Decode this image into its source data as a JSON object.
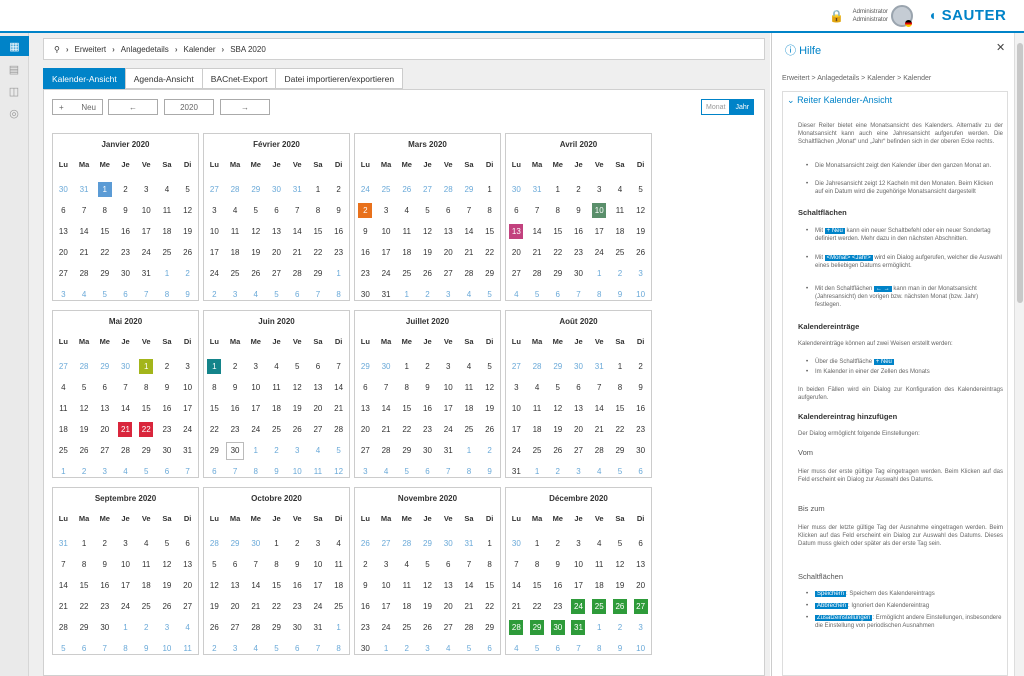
{
  "app": {
    "logo": "SAUTER",
    "user_line1": "Administrator",
    "user_line2": "Administrator",
    "lock_icon": "lock-icon"
  },
  "sidebar": {
    "items": [
      {
        "icon": "calendar-icon",
        "active": true
      },
      {
        "icon": "building-icon",
        "active": false
      },
      {
        "icon": "devices-icon",
        "active": false
      },
      {
        "icon": "settings-circle-icon",
        "active": false
      }
    ]
  },
  "breadcrumb": [
    "Erweitert",
    "Anlagedetails",
    "Kalender",
    "SBA 2020"
  ],
  "tabs": [
    "Kalender-Ansicht",
    "Agenda-Ansicht",
    "BACnet-Export",
    "Datei importieren/exportieren"
  ],
  "toolbar": {
    "new_label": "Neu",
    "plus": "+",
    "prev": "←",
    "year": "2020",
    "next": "→",
    "view_month": "Monat",
    "view_year": "Jahr"
  },
  "weekdays": [
    "Lu",
    "Ma",
    "Me",
    "Je",
    "Ve",
    "Sa",
    "Di"
  ],
  "months": [
    {
      "name": "Janvier 2020",
      "offset": 2,
      "days": 31,
      "prev_last": 31
    },
    {
      "name": "Février 2020",
      "offset": 5,
      "days": 29,
      "prev_last": 31
    },
    {
      "name": "Mars 2020",
      "offset": 6,
      "days": 31,
      "prev_last": 29
    },
    {
      "name": "Avril 2020",
      "offset": 2,
      "days": 30,
      "prev_last": 31
    },
    {
      "name": "Mai 2020",
      "offset": 4,
      "days": 31,
      "prev_last": 30
    },
    {
      "name": "Juin 2020",
      "offset": 0,
      "days": 30,
      "prev_last": 31
    },
    {
      "name": "Juillet 2020",
      "offset": 2,
      "days": 31,
      "prev_last": 30
    },
    {
      "name": "Août 2020",
      "offset": 5,
      "days": 31,
      "prev_last": 31
    },
    {
      "name": "Septembre 2020",
      "offset": 1,
      "days": 30,
      "prev_last": 31
    },
    {
      "name": "Octobre 2020",
      "offset": 3,
      "days": 31,
      "prev_last": 30
    },
    {
      "name": "Novembre 2020",
      "offset": 6,
      "days": 30,
      "prev_last": 31
    },
    {
      "name": "Décembre 2020",
      "offset": 1,
      "days": 31,
      "prev_last": 30
    }
  ],
  "highlights": [
    {
      "month": 0,
      "day": 1,
      "color": "#5b9bd5"
    },
    {
      "month": 2,
      "day": 2,
      "color": "#e8711c"
    },
    {
      "month": 3,
      "day": 10,
      "color": "#5a8f6b"
    },
    {
      "month": 3,
      "day": 13,
      "color": "#c2417e"
    },
    {
      "month": 4,
      "day": 1,
      "color": "#a3b51a"
    },
    {
      "month": 4,
      "day": 21,
      "color": "#d9263c"
    },
    {
      "month": 4,
      "day": 22,
      "color": "#d9263c"
    },
    {
      "month": 5,
      "day": 1,
      "color": "#14848a"
    },
    {
      "month": 11,
      "day": 24,
      "color": "#2e9b3a"
    },
    {
      "month": 11,
      "day": 25,
      "color": "#2e9b3a"
    },
    {
      "month": 11,
      "day": 26,
      "color": "#2e9b3a"
    },
    {
      "month": 11,
      "day": 27,
      "color": "#2e9b3a"
    },
    {
      "month": 11,
      "day": 28,
      "color": "#2e9b3a"
    },
    {
      "month": 11,
      "day": 29,
      "color": "#2e9b3a"
    },
    {
      "month": 11,
      "day": 30,
      "color": "#2e9b3a"
    },
    {
      "month": 11,
      "day": 31,
      "color": "#2e9b3a"
    }
  ],
  "today": {
    "month": 5,
    "day": 30
  },
  "help": {
    "title": "Hilfe",
    "breadcrumb": "Erweitert > Anlagedetails > Kalender > Kalender",
    "section": "Reiter Kalender-Ansicht",
    "intro": "Dieser Reiter bietet eine Monatsansicht des Kalenders. Alternativ zu der Monatsansicht kann auch eine Jahresansicht aufgerufen werden. Die Schaltflächen „Monat“ und „Jahr“ befinden sich in der oberen Ecke rechts.",
    "li1": "Die Monatsansicht zeigt den Kalender über den ganzen Monat an.",
    "li2": "Die Jahresansicht zeigt 12 Kacheln mit den Monaten. Beim Klicken auf ein Datum wird die zugehörige Monatsansicht dargestellt",
    "h_buttons": "Schaltflächen",
    "b1_pre": "Mit",
    "b1_btn": "+ Neu",
    "b1_post": "kann ein neuer Schaltbefehl oder ein neuer Sondertag definiert werden. Mehr dazu in den nächsten Abschnitten.",
    "b2_pre": "Mit",
    "b2_btn": "<Monat> <Jahr>",
    "b2_post": "wird ein Dialog aufgerufen, welcher die Auswahl eines beliebigen Datums ermöglicht.",
    "b3_pre": "Mit den Schaltflächen",
    "b3_btn": "← →",
    "b3_post": "kann man in der Monatsansicht (Jahresansicht) den vorigen bzw. nächsten Monat (bzw. Jahr) festlegen.",
    "h_entries": "Kalendereinträge",
    "entries_text": "Kalendereinträge können auf zwei Weisen erstellt werden:",
    "e1_pre": "Über die Schaltfläche",
    "e1_btn": "+ Neu",
    "e2": "Im Kalender in einer der Zellen des Monats",
    "entries_text2": "In beiden Fällen wird ein Dialog zur Konfiguration des Kalendereintrags aufgerufen.",
    "h_add": "Kalendereintrag hinzufügen",
    "add_text": "Der Dialog ermöglicht folgende Einstellungen:",
    "h_vom": "Vom",
    "vom_text": "Hier muss der erste gültige Tag eingetragen werden. Beim Klicken auf das Feld erscheint ein Dialog zur Auswahl des Datums.",
    "h_bis": "Bis zum",
    "bis_text": "Hier muss der letzte gültige Tag der Ausnahme eingetragen werden. Beim Klicken auf das Feld erscheint ein Dialog zur Auswahl des Datums. Dieses Datum muss gleich oder später als der erste Tag sein.",
    "h_buttons2": "Schaltflächen",
    "s1_btn": "Speichern",
    "s1_post": ": Speichern des Kalendereintrags",
    "s2_btn": "Abbrechen",
    "s2_post": ": Ignoriert den Kalendereintrag",
    "s3_btn": "Zusatzeinstellungen",
    "s3_post": ": Ermöglicht andere Einstellungen, insbesondere die Einstellung von periodischen Ausnahmen"
  }
}
